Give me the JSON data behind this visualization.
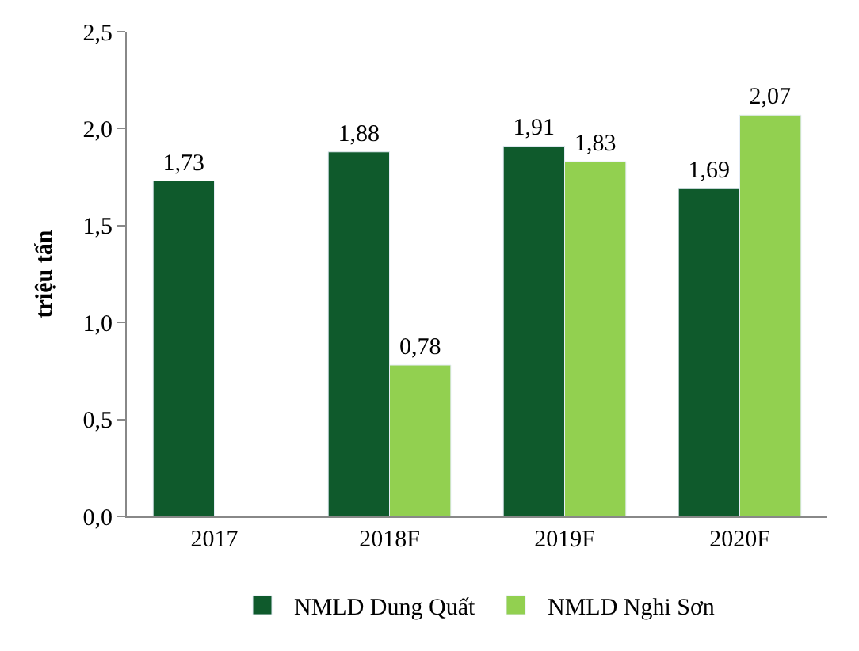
{
  "chart_data": {
    "type": "bar",
    "ylabel": "triệu tấn",
    "categories": [
      "2017",
      "2018F",
      "2019F",
      "2020F"
    ],
    "series": [
      {
        "name": "NMLD Dung Quất",
        "color": "#0f5a2c",
        "values": [
          1.73,
          1.88,
          1.91,
          1.69
        ],
        "value_labels": [
          "1,73",
          "1,88",
          "1,91",
          "1,69"
        ]
      },
      {
        "name": "NMLD Nghi Sơn",
        "color": "#92d050",
        "values": [
          null,
          0.78,
          1.83,
          2.07
        ],
        "value_labels": [
          null,
          "0,78",
          "1,83",
          "2,07"
        ]
      }
    ],
    "ylim": [
      0,
      2.5
    ],
    "yticks": [
      {
        "value": 0,
        "label": "0,0"
      },
      {
        "value": 0.5,
        "label": "0,5"
      },
      {
        "value": 1,
        "label": "1,0"
      },
      {
        "value": 1.5,
        "label": "1,5"
      },
      {
        "value": 2,
        "label": "2,0"
      },
      {
        "value": 2.5,
        "label": "2,5"
      }
    ],
    "legend": "bottom"
  }
}
